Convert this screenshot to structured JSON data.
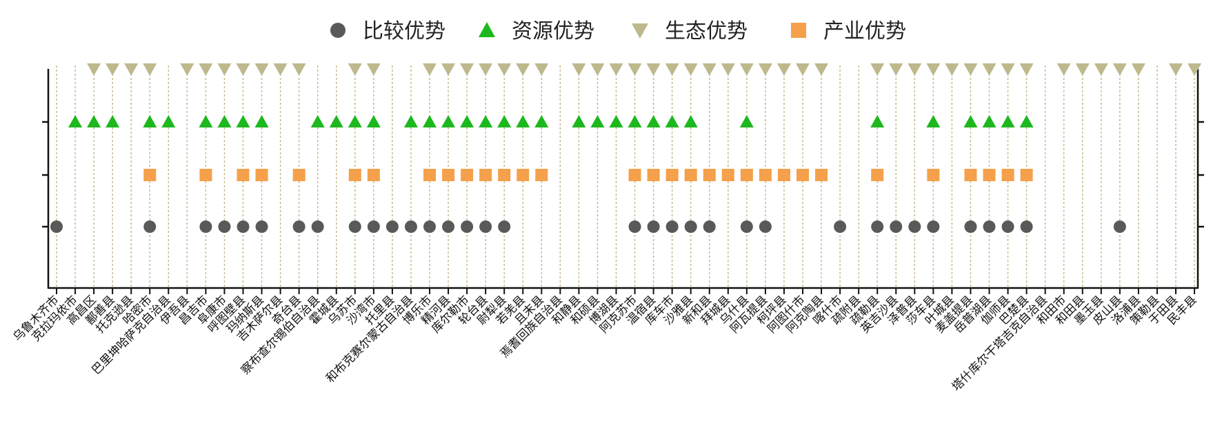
{
  "chart_data": {
    "type": "scatter",
    "categories": [
      "乌鲁木齐市",
      "克拉玛依市",
      "高昌区",
      "鄯善县",
      "托克逊县",
      "哈密市",
      "巴里坤哈萨克自治县",
      "伊吾县",
      "昌吉市",
      "阜康市",
      "呼图壁县",
      "玛纳斯县",
      "吉木萨尔县",
      "奇台县",
      "察布查尔锡伯自治县",
      "霍城县",
      "乌苏市",
      "沙湾市",
      "托里县",
      "和布克赛尔蒙古自治县",
      "博乐市",
      "精河县",
      "库尔勒市",
      "轮台县",
      "尉犁县",
      "若羌县",
      "且末县",
      "焉耆回族自治县",
      "和静县",
      "和硕县",
      "博湖县",
      "阿克苏市",
      "温宿县",
      "库车市",
      "沙雅县",
      "新和县",
      "拜城县",
      "乌什县",
      "阿瓦提县",
      "柯坪县",
      "阿图什市",
      "阿克陶县",
      "喀什市",
      "疏附县",
      "疏勒县",
      "英吉沙县",
      "泽普县",
      "莎车县",
      "叶城县",
      "麦盖提县",
      "岳普湖县",
      "伽师县",
      "巴楚县",
      "塔什库尔干塔吉克自治县",
      "和田市",
      "和田县",
      "墨玉县",
      "皮山县",
      "洛浦县",
      "策勒县",
      "于田县",
      "民丰县"
    ],
    "series": [
      {
        "name": "比较优势",
        "level": 1,
        "marker": "circle",
        "color": "#595959",
        "values": [
          1,
          0,
          0,
          0,
          0,
          1,
          0,
          0,
          1,
          1,
          1,
          1,
          0,
          1,
          1,
          0,
          1,
          1,
          1,
          1,
          1,
          1,
          1,
          1,
          1,
          0,
          0,
          0,
          0,
          0,
          0,
          1,
          1,
          1,
          1,
          1,
          0,
          1,
          1,
          0,
          0,
          0,
          1,
          0,
          1,
          1,
          1,
          1,
          0,
          1,
          1,
          1,
          1,
          0,
          0,
          0,
          0,
          1,
          0,
          0,
          0,
          0
        ]
      },
      {
        "name": "产业优势",
        "level": 2,
        "marker": "square",
        "color": "#F5A04A",
        "values": [
          0,
          0,
          0,
          0,
          0,
          1,
          0,
          0,
          1,
          0,
          1,
          1,
          0,
          1,
          0,
          0,
          1,
          1,
          0,
          0,
          1,
          1,
          1,
          1,
          1,
          1,
          1,
          0,
          0,
          0,
          0,
          1,
          1,
          1,
          1,
          1,
          1,
          1,
          1,
          1,
          1,
          1,
          0,
          0,
          1,
          0,
          0,
          1,
          0,
          1,
          1,
          1,
          1,
          0,
          0,
          0,
          0,
          0,
          0,
          0,
          0,
          0
        ]
      },
      {
        "name": "资源优势",
        "level": 3,
        "marker": "triangle-up",
        "color": "#1DB81D",
        "values": [
          0,
          1,
          1,
          1,
          0,
          1,
          1,
          0,
          1,
          1,
          1,
          1,
          0,
          0,
          1,
          1,
          1,
          1,
          0,
          1,
          1,
          1,
          1,
          1,
          1,
          1,
          1,
          0,
          1,
          1,
          1,
          1,
          1,
          1,
          1,
          0,
          0,
          1,
          0,
          0,
          0,
          0,
          0,
          0,
          1,
          0,
          0,
          1,
          0,
          1,
          1,
          1,
          1,
          0,
          0,
          0,
          0,
          0,
          0,
          0,
          0,
          0
        ]
      },
      {
        "name": "生态优势",
        "level": 4,
        "marker": "triangle-down",
        "color": "#BDB98D",
        "values": [
          0,
          0,
          1,
          1,
          1,
          1,
          0,
          1,
          1,
          1,
          1,
          1,
          1,
          1,
          0,
          0,
          1,
          1,
          0,
          0,
          1,
          1,
          1,
          1,
          1,
          1,
          1,
          0,
          1,
          1,
          1,
          1,
          1,
          1,
          1,
          1,
          1,
          1,
          1,
          1,
          1,
          1,
          0,
          0,
          1,
          1,
          1,
          1,
          1,
          1,
          1,
          1,
          1,
          0,
          1,
          1,
          1,
          1,
          1,
          0,
          1,
          1
        ]
      }
    ],
    "legend": {
      "items": [
        {
          "label": "比较优势",
          "marker": "circle",
          "color": "#595959"
        },
        {
          "label": "资源优势",
          "marker": "triangle-up",
          "color": "#1DB81D"
        },
        {
          "label": "生态优势",
          "marker": "triangle-down",
          "color": "#BDB98D"
        },
        {
          "label": "产业优势",
          "marker": "square",
          "color": "#F5A04A"
        }
      ],
      "placement": "top-center"
    },
    "ylim": [
      0,
      5
    ],
    "gridline_color": "#C8B98A",
    "axis_color": "#111111",
    "title": "",
    "xlabel": "",
    "ylabel": ""
  }
}
